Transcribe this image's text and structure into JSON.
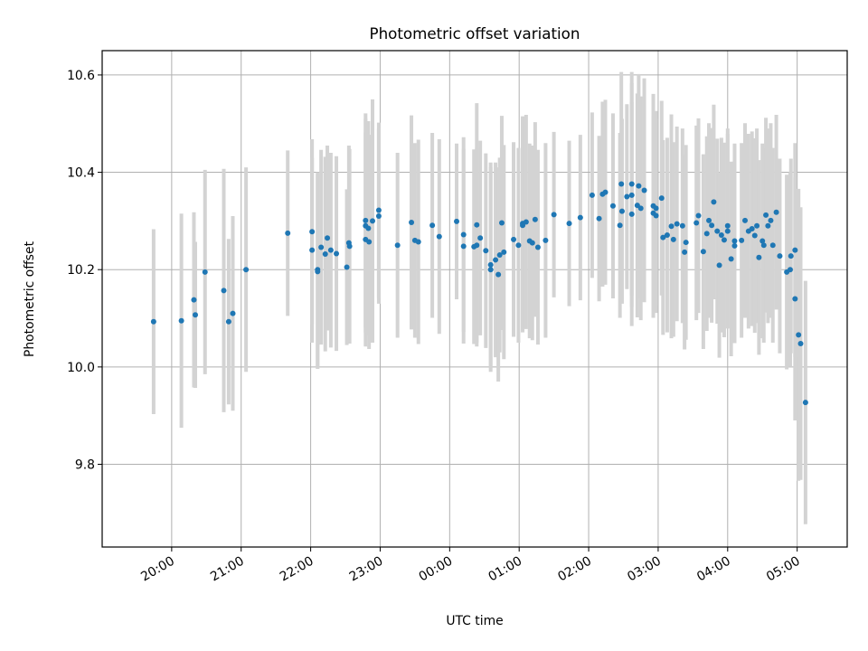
{
  "chart_data": {
    "type": "scatter",
    "title": "Photometric offset variation",
    "xlabel": "UTC time",
    "ylabel": "Photometric offset",
    "x_unit": "UTC hour (time of day; values past midnight continue beyond 24:00)",
    "xlim": [
      19.0,
      29.72
    ],
    "ylim": [
      9.63,
      10.65
    ],
    "xticks": [
      20,
      21,
      22,
      23,
      24,
      25,
      26,
      27,
      28,
      29
    ],
    "xtick_labels": [
      "20:00",
      "21:00",
      "22:00",
      "23:00",
      "00:00",
      "01:00",
      "02:00",
      "03:00",
      "04:00",
      "05:00"
    ],
    "yticks": [
      9.8,
      10.0,
      10.2,
      10.4,
      10.6
    ],
    "ytick_labels": [
      "9.8",
      "10.0",
      "10.2",
      "10.4",
      "10.6"
    ],
    "grid": true,
    "legend": "none",
    "colors": {
      "points": "#1f77b4",
      "errorbars": "#d3d3d3",
      "grid": "#b0b0b0"
    },
    "series": [
      {
        "points": [
          [
            19.74,
            10.093,
            0.19
          ],
          [
            20.14,
            10.095,
            0.22
          ],
          [
            20.32,
            10.138,
            0.18
          ],
          [
            20.34,
            10.107,
            0.15
          ],
          [
            20.48,
            10.195,
            0.21
          ],
          [
            20.75,
            10.157,
            0.25
          ],
          [
            20.82,
            10.093,
            0.17
          ],
          [
            20.88,
            10.11,
            0.2
          ],
          [
            21.07,
            10.2,
            0.21
          ],
          [
            21.67,
            10.275,
            0.17
          ],
          [
            22.02,
            10.278,
            0.19
          ],
          [
            22.02,
            10.24,
            0.19
          ],
          [
            22.1,
            10.2,
            0.2
          ],
          [
            22.1,
            10.196,
            0.2
          ],
          [
            22.15,
            10.246,
            0.2
          ],
          [
            22.21,
            10.232,
            0.2
          ],
          [
            22.24,
            10.265,
            0.19
          ],
          [
            22.29,
            10.24,
            0.2
          ],
          [
            22.37,
            10.233,
            0.2
          ],
          [
            22.52,
            10.205,
            0.16
          ],
          [
            22.55,
            10.255,
            0.2
          ],
          [
            22.56,
            10.248,
            0.2
          ],
          [
            22.79,
            10.301,
            0.22
          ],
          [
            22.79,
            10.29,
            0.22
          ],
          [
            22.79,
            10.262,
            0.22
          ],
          [
            22.83,
            10.285,
            0.22
          ],
          [
            22.84,
            10.257,
            0.22
          ],
          [
            22.89,
            10.3,
            0.25
          ],
          [
            22.98,
            10.322,
            0.18
          ],
          [
            22.98,
            10.31,
            0.18
          ],
          [
            23.25,
            10.25,
            0.19
          ],
          [
            23.45,
            10.297,
            0.22
          ],
          [
            23.5,
            10.26,
            0.2
          ],
          [
            23.55,
            10.257,
            0.21
          ],
          [
            23.75,
            10.291,
            0.19
          ],
          [
            23.85,
            10.268,
            0.2
          ],
          [
            24.1,
            10.299,
            0.16
          ],
          [
            24.2,
            10.272,
            0.2
          ],
          [
            24.2,
            10.248,
            0.2
          ],
          [
            24.35,
            10.247,
            0.2
          ],
          [
            24.39,
            10.25,
            0.2
          ],
          [
            24.39,
            10.292,
            0.25
          ],
          [
            24.44,
            10.265,
            0.2
          ],
          [
            24.52,
            10.239,
            0.2
          ],
          [
            24.59,
            10.2,
            0.21
          ],
          [
            24.59,
            10.21,
            0.21
          ],
          [
            24.66,
            10.22,
            0.2
          ],
          [
            24.7,
            10.19,
            0.22
          ],
          [
            24.72,
            10.23,
            0.2
          ],
          [
            24.75,
            10.296,
            0.22
          ],
          [
            24.78,
            10.236,
            0.22
          ],
          [
            24.92,
            10.262,
            0.2
          ],
          [
            24.99,
            10.25,
            0.2
          ],
          [
            25.05,
            10.295,
            0.22
          ],
          [
            25.05,
            10.291,
            0.22
          ],
          [
            25.1,
            10.298,
            0.22
          ],
          [
            25.15,
            10.259,
            0.2
          ],
          [
            25.19,
            10.255,
            0.2
          ],
          [
            25.23,
            10.303,
            0.2
          ],
          [
            25.27,
            10.246,
            0.2
          ],
          [
            25.38,
            10.26,
            0.2
          ],
          [
            25.5,
            10.313,
            0.17
          ],
          [
            25.72,
            10.295,
            0.17
          ],
          [
            25.88,
            10.307,
            0.17
          ],
          [
            26.05,
            10.353,
            0.17
          ],
          [
            26.15,
            10.305,
            0.17
          ],
          [
            26.2,
            10.355,
            0.19
          ],
          [
            26.24,
            10.359,
            0.19
          ],
          [
            26.35,
            10.331,
            0.19
          ],
          [
            26.45,
            10.291,
            0.19
          ],
          [
            26.47,
            10.376,
            0.23
          ],
          [
            26.48,
            10.32,
            0.19
          ],
          [
            26.55,
            10.35,
            0.19
          ],
          [
            26.62,
            10.376,
            0.23
          ],
          [
            26.62,
            10.353,
            0.23
          ],
          [
            26.62,
            10.314,
            0.23
          ],
          [
            26.7,
            10.332,
            0.23
          ],
          [
            26.72,
            10.372,
            0.23
          ],
          [
            26.75,
            10.326,
            0.23
          ],
          [
            26.8,
            10.363,
            0.23
          ],
          [
            26.93,
            10.331,
            0.23
          ],
          [
            26.93,
            10.316,
            0.2
          ],
          [
            26.97,
            10.311,
            0.2
          ],
          [
            26.97,
            10.326,
            0.2
          ],
          [
            27.05,
            10.347,
            0.2
          ],
          [
            27.07,
            10.266,
            0.2
          ],
          [
            27.13,
            10.271,
            0.2
          ],
          [
            27.19,
            10.289,
            0.23
          ],
          [
            27.22,
            10.262,
            0.2
          ],
          [
            27.27,
            10.294,
            0.2
          ],
          [
            27.35,
            10.29,
            0.2
          ],
          [
            27.38,
            10.236,
            0.2
          ],
          [
            27.4,
            10.256,
            0.2
          ],
          [
            27.55,
            10.296,
            0.2
          ],
          [
            27.58,
            10.311,
            0.2
          ],
          [
            27.65,
            10.237,
            0.2
          ],
          [
            27.7,
            10.274,
            0.2
          ],
          [
            27.73,
            10.301,
            0.2
          ],
          [
            27.77,
            10.291,
            0.2
          ],
          [
            27.8,
            10.339,
            0.2
          ],
          [
            27.85,
            10.279,
            0.19
          ],
          [
            27.88,
            10.209,
            0.19
          ],
          [
            27.91,
            10.271,
            0.2
          ],
          [
            27.95,
            10.261,
            0.2
          ],
          [
            28.0,
            10.279,
            0.2
          ],
          [
            28.0,
            10.29,
            0.2
          ],
          [
            28.05,
            10.222,
            0.2
          ],
          [
            28.1,
            10.249,
            0.2
          ],
          [
            28.1,
            10.259,
            0.2
          ],
          [
            28.2,
            10.26,
            0.2
          ],
          [
            28.25,
            10.301,
            0.2
          ],
          [
            28.3,
            10.279,
            0.2
          ],
          [
            28.35,
            10.284,
            0.2
          ],
          [
            28.39,
            10.27,
            0.2
          ],
          [
            28.42,
            10.29,
            0.2
          ],
          [
            28.45,
            10.225,
            0.2
          ],
          [
            28.5,
            10.259,
            0.2
          ],
          [
            28.52,
            10.25,
            0.2
          ],
          [
            28.55,
            10.312,
            0.2
          ],
          [
            28.58,
            10.29,
            0.2
          ],
          [
            28.62,
            10.301,
            0.2
          ],
          [
            28.65,
            10.25,
            0.2
          ],
          [
            28.7,
            10.318,
            0.2
          ],
          [
            28.75,
            10.228,
            0.2
          ],
          [
            28.85,
            10.195,
            0.2
          ],
          [
            28.9,
            10.2,
            0.2
          ],
          [
            28.91,
            10.228,
            0.2
          ],
          [
            28.97,
            10.24,
            0.22
          ],
          [
            28.97,
            10.14,
            0.25
          ],
          [
            29.02,
            10.066,
            0.3
          ],
          [
            29.05,
            10.048,
            0.28
          ],
          [
            29.12,
            9.927,
            0.25
          ]
        ]
      }
    ]
  }
}
